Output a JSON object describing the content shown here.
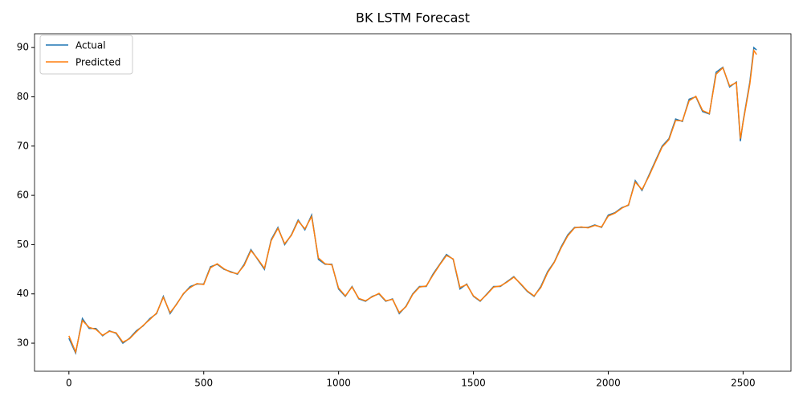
{
  "chart_data": {
    "type": "line",
    "title": "BK LSTM Forecast",
    "x": [
      0,
      25,
      50,
      75,
      100,
      125,
      150,
      175,
      200,
      225,
      250,
      275,
      300,
      325,
      350,
      375,
      400,
      425,
      450,
      475,
      500,
      525,
      550,
      575,
      600,
      625,
      650,
      675,
      700,
      725,
      750,
      775,
      800,
      825,
      850,
      875,
      900,
      925,
      950,
      975,
      1000,
      1025,
      1050,
      1075,
      1100,
      1125,
      1150,
      1175,
      1200,
      1225,
      1250,
      1275,
      1300,
      1325,
      1350,
      1375,
      1400,
      1425,
      1450,
      1475,
      1500,
      1525,
      1550,
      1575,
      1600,
      1625,
      1650,
      1675,
      1700,
      1725,
      1750,
      1775,
      1800,
      1825,
      1850,
      1875,
      1900,
      1925,
      1950,
      1975,
      2000,
      2025,
      2050,
      2075,
      2100,
      2125,
      2150,
      2175,
      2200,
      2225,
      2250,
      2275,
      2300,
      2325,
      2350,
      2375,
      2400,
      2425,
      2450,
      2475,
      2490,
      2500,
      2525,
      2540,
      2550
    ],
    "series": [
      {
        "name": "Actual",
        "color": "#1f77b4",
        "values": [
          31,
          28,
          35,
          33,
          33,
          31.5,
          32.5,
          32,
          30,
          31,
          32.5,
          33.5,
          35,
          36,
          39.5,
          36,
          38,
          40,
          41.5,
          42,
          42,
          45.5,
          46,
          45,
          44.5,
          44,
          46,
          49,
          47,
          45,
          51,
          53.5,
          50,
          52,
          55,
          53,
          56,
          47,
          46,
          46,
          41,
          39.5,
          41.5,
          39,
          38.5,
          39.5,
          40,
          38.5,
          39,
          36,
          37.5,
          40,
          41.5,
          41.5,
          44,
          46,
          48,
          47,
          41,
          42,
          39.5,
          38.5,
          40,
          41.5,
          41.5,
          42.5,
          43.5,
          42,
          40.5,
          39.5,
          41.5,
          44.5,
          46.5,
          49.5,
          52,
          53.5,
          53.5,
          53.5,
          54,
          53.5,
          56,
          56.5,
          57.5,
          58,
          63,
          61,
          64,
          67,
          70,
          71.5,
          75.5,
          75,
          79.5,
          80,
          77,
          76.5,
          85,
          86,
          82,
          83,
          71,
          75,
          83,
          90,
          89.5
        ]
      },
      {
        "name": "Predicted",
        "color": "#ff7f0e",
        "values": [
          31.5,
          28.2,
          34.6,
          33.2,
          32.8,
          31.6,
          32.4,
          32.1,
          30.2,
          30.9,
          32.3,
          33.6,
          34.8,
          36.1,
          39.3,
          36.2,
          37.9,
          40.1,
          41.3,
          42.1,
          41.9,
          45.3,
          46.1,
          45.1,
          44.4,
          44.1,
          45.8,
          48.8,
          47.1,
          45.2,
          50.8,
          53.3,
          50.2,
          51.9,
          54.8,
          53.2,
          55.7,
          47.3,
          46.1,
          45.9,
          41.2,
          39.6,
          41.4,
          39.1,
          38.6,
          39.4,
          40.1,
          38.6,
          38.9,
          36.2,
          37.4,
          39.9,
          41.4,
          41.6,
          43.8,
          45.9,
          47.8,
          47.1,
          41.3,
          41.9,
          39.6,
          38.6,
          39.9,
          41.4,
          41.6,
          42.4,
          43.4,
          42.1,
          40.6,
          39.6,
          41.3,
          44.3,
          46.4,
          49.3,
          51.8,
          53.4,
          53.6,
          53.4,
          53.9,
          53.6,
          55.8,
          56.4,
          57.4,
          58.1,
          62.7,
          61.2,
          63.8,
          66.8,
          69.8,
          71.3,
          75.2,
          75.1,
          79.2,
          80.1,
          77.2,
          76.6,
          84.6,
          85.9,
          82.2,
          82.9,
          71.5,
          74.8,
          82.6,
          89.4,
          88.6
        ]
      }
    ],
    "xlim": [
      -127.5,
      2677.5
    ],
    "ylim": [
      24.3,
      92.8
    ],
    "xticks": [
      0,
      500,
      1000,
      1500,
      2000,
      2500
    ],
    "yticks": [
      30,
      40,
      50,
      60,
      70,
      80,
      90
    ],
    "legend": "upper left"
  }
}
